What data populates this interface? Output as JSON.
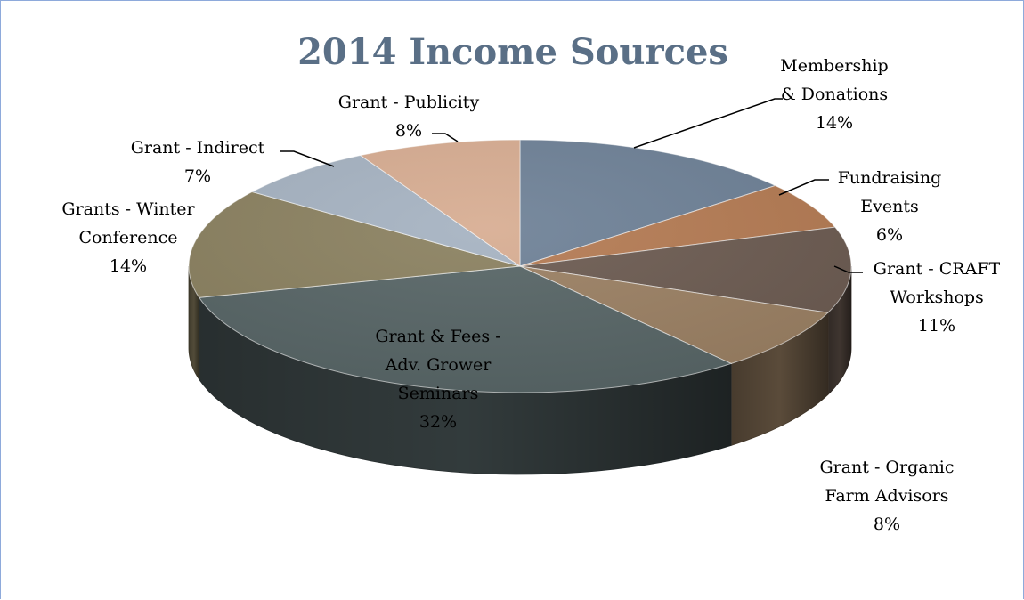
{
  "chart_data": {
    "type": "pie",
    "title": "2014 Income Sources",
    "slices": [
      {
        "label": "Membership\n& Donations",
        "value": 14,
        "display": "14%",
        "color": "#6d8096"
      },
      {
        "label": "Fundraising\nEvents",
        "value": 6,
        "display": "6%",
        "color": "#b47a52"
      },
      {
        "label": "Grant - CRAFT\nWorkshops",
        "value": 11,
        "display": "11%",
        "color": "#6b5a50"
      },
      {
        "label": "Grant - Organic\nFarm Advisors",
        "value": 8,
        "display": "8%",
        "color": "#9a7f62"
      },
      {
        "label": "Grant & Fees -\nAdv. Grower\nSeminars",
        "value": 32,
        "display": "32%",
        "color": "#566465"
      },
      {
        "label": "Grants - Winter\nConference",
        "value": 14,
        "display": "14%",
        "color": "#8a805f"
      },
      {
        "label": "Grant - Indirect",
        "value": 7,
        "display": "7%",
        "color": "#a5b2c1"
      },
      {
        "label": "Grant - Publicity",
        "value": 8,
        "display": "8%",
        "color": "#d7ac91"
      }
    ],
    "data_labels": "outside with leader lines; largest slice labeled inside",
    "legend": "none",
    "style": "3D pie",
    "colors": {
      "title": "#5a6f86"
    }
  }
}
